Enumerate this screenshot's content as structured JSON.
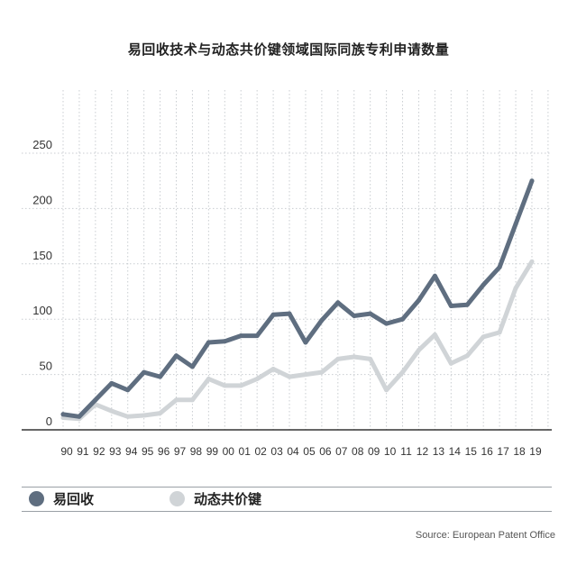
{
  "source": "Source: European Patent Office",
  "chart_data": {
    "type": "line",
    "title": "易回收技术与动态共价键领域国际同族专利申请数量",
    "xlabel": "",
    "ylabel": "",
    "categories": [
      "90",
      "91",
      "92",
      "93",
      "94",
      "95",
      "96",
      "97",
      "98",
      "99",
      "00",
      "01",
      "02",
      "03",
      "04",
      "05",
      "06",
      "07",
      "08",
      "09",
      "10",
      "11",
      "12",
      "13",
      "14",
      "15",
      "16",
      "17",
      "18",
      "19"
    ],
    "yticks": [
      0,
      50,
      100,
      150,
      200,
      250
    ],
    "ylim": [
      0,
      250
    ],
    "grid": true,
    "legend": "bottom",
    "series": [
      {
        "name": "易回收",
        "color": "#5f6e80",
        "values": [
          14,
          12,
          27,
          42,
          36,
          52,
          48,
          67,
          57,
          79,
          80,
          85,
          85,
          104,
          105,
          79,
          99,
          115,
          103,
          105,
          96,
          100,
          117,
          139,
          112,
          113,
          131,
          147,
          186,
          225
        ]
      },
      {
        "name": "动态共价键",
        "color": "#d0d4d7",
        "values": [
          11,
          10,
          23,
          17,
          12,
          13,
          15,
          27,
          27,
          46,
          40,
          40,
          46,
          55,
          48,
          50,
          52,
          64,
          66,
          64,
          36,
          52,
          72,
          86,
          60,
          67,
          84,
          88,
          128,
          152
        ]
      }
    ]
  }
}
